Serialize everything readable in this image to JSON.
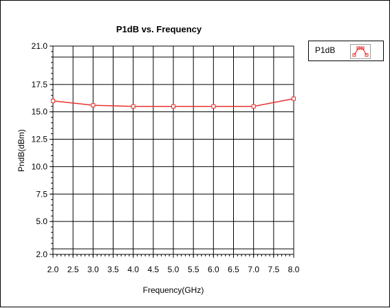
{
  "chart_data": {
    "type": "line",
    "title": "P1dB vs. Frequency",
    "xlabel": "Frequency(GHz)",
    "ylabel": "PndB(dBm)",
    "xlim": [
      2.0,
      8.0
    ],
    "ylim": [
      2.0,
      21.0
    ],
    "x_ticks": [
      "2.0",
      "2.5",
      "3.0",
      "3.5",
      "4.0",
      "4.5",
      "5.0",
      "5.5",
      "6.0",
      "6.5",
      "7.0",
      "7.5",
      "8.0"
    ],
    "y_ticks": [
      "2.0",
      "5.0",
      "7.5",
      "10.0",
      "12.5",
      "15.0",
      "17.5",
      "21.0"
    ],
    "grid": true,
    "legend_position": "top-right",
    "series": [
      {
        "name": "P1dB",
        "color": "#e8312c",
        "marker": "square",
        "x": [
          2.0,
          3.0,
          4.0,
          5.0,
          6.0,
          7.0,
          8.0
        ],
        "y": [
          16.0,
          15.6,
          15.5,
          15.5,
          15.5,
          15.5,
          16.2
        ]
      }
    ]
  }
}
